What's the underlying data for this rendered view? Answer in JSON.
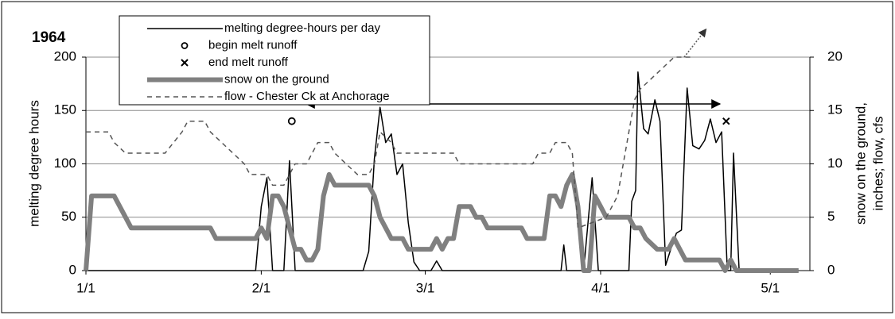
{
  "chart_data": {
    "type": "line",
    "title": "1964",
    "y_label": "melting degree hours",
    "y2_label": [
      "snow on the ground,",
      "inches; flow, cfs"
    ],
    "xlim": [
      0,
      128
    ],
    "xticks": [
      {
        "value": 0,
        "label": "1/1"
      },
      {
        "value": 31,
        "label": "2/1"
      },
      {
        "value": 60,
        "label": "3/1"
      },
      {
        "value": 91,
        "label": "4/1"
      },
      {
        "value": 121,
        "label": "5/1"
      }
    ],
    "ylim": [
      0,
      200
    ],
    "yticks": [
      0,
      50,
      100,
      150,
      200
    ],
    "y2lim": [
      0,
      20
    ],
    "y2ticks": [
      0,
      5,
      10,
      15,
      20
    ],
    "grid": true,
    "series": [
      {
        "name": "melting degree-hours per day",
        "color": "#000000",
        "width": 1.5,
        "style": "solid",
        "x": [
          0,
          30,
          31,
          32,
          33,
          35,
          36,
          37,
          49,
          50,
          51,
          52,
          53,
          54,
          55,
          56,
          57,
          58,
          59,
          61,
          62,
          63,
          84,
          84.5,
          85,
          88,
          89.5,
          90.6,
          96,
          96.5,
          97.2,
          97.6,
          98.6,
          99.4,
          100.6,
          101.5,
          102.5,
          103.4,
          104.4,
          105.3,
          106.3,
          107.3,
          108.4,
          109.4,
          110.4,
          111.4,
          112.4,
          113.4,
          114,
          114.5,
          115.5,
          126
        ],
        "values": [
          0,
          0,
          60,
          87,
          0,
          0,
          103,
          0,
          0,
          18,
          105,
          153,
          120,
          128,
          90,
          100,
          45,
          8,
          0,
          0,
          9,
          0,
          0,
          24,
          0,
          0,
          87,
          0,
          0,
          65,
          75,
          186,
          133,
          128,
          160,
          140,
          5,
          20,
          35,
          38,
          171,
          117,
          114,
          122,
          142,
          120,
          130,
          0,
          0,
          110,
          0,
          0
        ]
      },
      {
        "name": "begin melt runoff",
        "color": "#000000",
        "marker": "o",
        "x": [
          36.4
        ],
        "values": [
          140
        ]
      },
      {
        "name": "end melt runoff",
        "color": "#000000",
        "marker": "x",
        "x": [
          113.2
        ],
        "values": [
          140
        ]
      },
      {
        "name": "snow on the ground",
        "color": "#808080",
        "width": 6,
        "style": "solid",
        "axis": "y2",
        "x": [
          0,
          1,
          5,
          8,
          22,
          23,
          30,
          31,
          32,
          33,
          34,
          35,
          36,
          37,
          38,
          39,
          40,
          41,
          42,
          43,
          44,
          50,
          51,
          52,
          53,
          54,
          56,
          57,
          61,
          62,
          63,
          64,
          65,
          66,
          68,
          69,
          70,
          71,
          77,
          78,
          81,
          82,
          83,
          84,
          85,
          86,
          87,
          88,
          89,
          90,
          91,
          92,
          96,
          97,
          98,
          99,
          101,
          103,
          104,
          105,
          106,
          112,
          113,
          114,
          115,
          126
        ],
        "values": [
          0,
          7,
          7,
          4,
          4,
          3,
          3,
          4,
          3,
          7,
          7,
          6,
          4,
          2,
          2,
          1,
          1,
          2,
          7,
          9,
          8,
          8,
          7,
          5,
          4,
          3,
          3,
          2,
          2,
          3,
          2,
          3,
          3,
          6,
          6,
          5,
          5,
          4,
          4,
          3,
          3,
          7,
          7,
          6,
          8,
          9,
          6,
          0,
          0,
          7,
          6,
          5,
          5,
          4,
          4,
          3,
          2,
          2,
          3,
          2,
          1,
          1,
          0,
          1,
          0,
          0
        ]
      },
      {
        "name": "flow - Chester Ck at Anchorage",
        "color": "#555555",
        "width": 1.5,
        "style": "dashed",
        "axis": "y2",
        "x": [
          0,
          4,
          5,
          7,
          14,
          17,
          18,
          21,
          22,
          24,
          26,
          28,
          29,
          32,
          33,
          35,
          36,
          37,
          39,
          40,
          41,
          43,
          44,
          46,
          48,
          50,
          51,
          52,
          54,
          55,
          65,
          66,
          79,
          80,
          82,
          83,
          85,
          86,
          87,
          92,
          94,
          96,
          97,
          98,
          100,
          102,
          104,
          107
        ],
        "values": [
          13,
          13,
          12,
          11,
          11,
          13,
          14,
          14,
          13,
          12,
          11,
          10,
          9,
          9,
          8,
          8,
          9,
          10,
          10,
          11,
          12,
          12,
          11,
          10,
          9,
          9,
          10,
          13,
          12,
          11,
          11,
          10,
          10,
          11,
          11,
          12,
          12,
          11,
          4,
          5,
          7,
          13,
          16,
          17,
          18,
          19,
          20,
          20
        ]
      }
    ]
  }
}
